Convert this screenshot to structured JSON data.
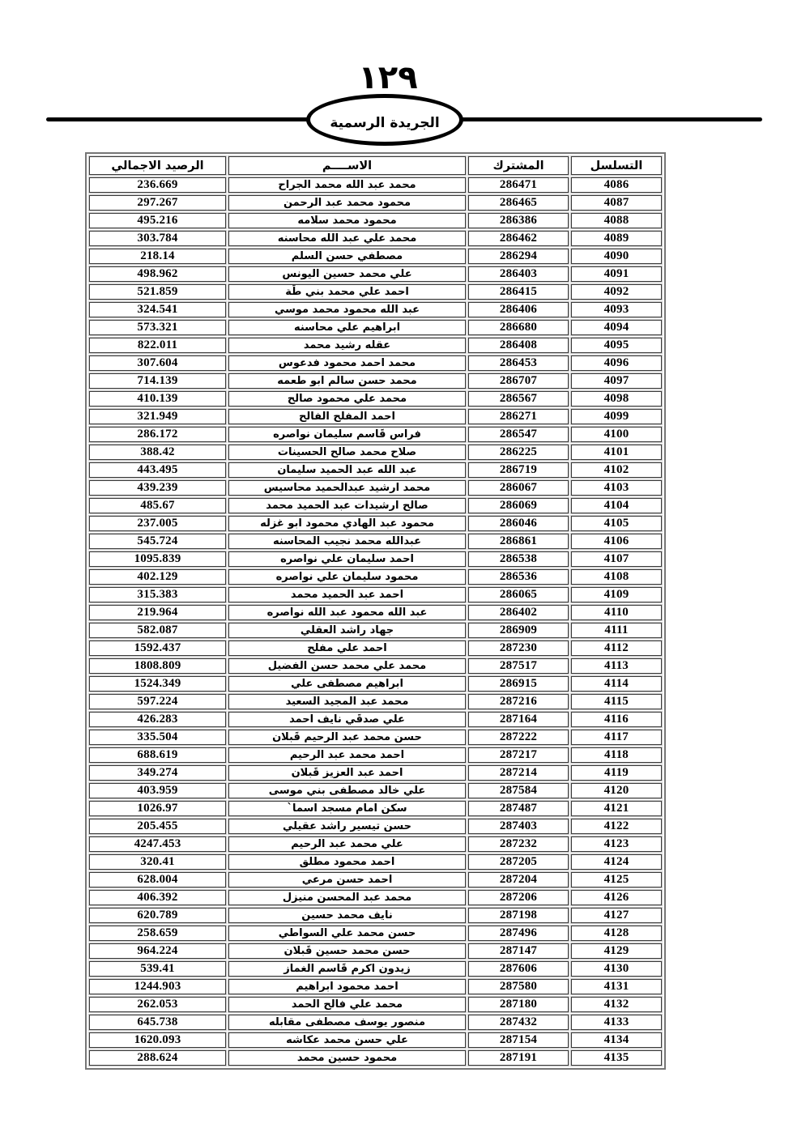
{
  "page": {
    "page_number_arabic": "١٢٩",
    "banner_title": "الجريدة الرسمية"
  },
  "colors": {
    "text": "#000000",
    "cell_border": "#3b3b3b",
    "outer_border": "#767676",
    "background": "#ffffff"
  },
  "table": {
    "headers": {
      "serial": "التسلسل",
      "subscriber": "المشترك",
      "name": "الاســــم",
      "balance": "الرصيد الاجمالي"
    },
    "rows": [
      {
        "serial": "4086",
        "subscriber": "286471",
        "name": "محمد عبد الله محمد الجراح",
        "balance": "236.669"
      },
      {
        "serial": "4087",
        "subscriber": "286465",
        "name": "محمود محمد عبد الرحمن",
        "balance": "297.267"
      },
      {
        "serial": "4088",
        "subscriber": "286386",
        "name": "محمود محمد سلامه",
        "balance": "495.216"
      },
      {
        "serial": "4089",
        "subscriber": "286462",
        "name": "محمد علي عبد الله محاسنه",
        "balance": "303.784"
      },
      {
        "serial": "4090",
        "subscriber": "286294",
        "name": "مصطفي حسن السلم",
        "balance": "218.14"
      },
      {
        "serial": "4091",
        "subscriber": "286403",
        "name": "علي محمد حسين اليونس",
        "balance": "498.962"
      },
      {
        "serial": "4092",
        "subscriber": "286415",
        "name": "احمد علي محمد بني طَة",
        "balance": "521.859"
      },
      {
        "serial": "4093",
        "subscriber": "286406",
        "name": "عبد الله محمود محمد موسي",
        "balance": "324.541"
      },
      {
        "serial": "4094",
        "subscriber": "286680",
        "name": "ابراهيم علي محاسنه",
        "balance": "573.321"
      },
      {
        "serial": "4095",
        "subscriber": "286408",
        "name": "عقله رشيد محمد",
        "balance": "822.011"
      },
      {
        "serial": "4096",
        "subscriber": "286453",
        "name": "محمد احمد محمود فدعوس",
        "balance": "307.604"
      },
      {
        "serial": "4097",
        "subscriber": "286707",
        "name": "محمد حسن سالم ابو طعمه",
        "balance": "714.139"
      },
      {
        "serial": "4098",
        "subscriber": "286567",
        "name": "محمد علي محمود صالح",
        "balance": "410.139"
      },
      {
        "serial": "4099",
        "subscriber": "286271",
        "name": "احمد المفلح الفالح",
        "balance": "321.949"
      },
      {
        "serial": "4100",
        "subscriber": "286547",
        "name": "فراس قَاسم سليمان نواصره",
        "balance": "286.172"
      },
      {
        "serial": "4101",
        "subscriber": "286225",
        "name": "صلاح محمد صالح الحسينات",
        "balance": "388.42"
      },
      {
        "serial": "4102",
        "subscriber": "286719",
        "name": "عبد الله عبد الحميد سليمان",
        "balance": "443.495"
      },
      {
        "serial": "4103",
        "subscriber": "286067",
        "name": "محمد ارشيد عبدالحميد محاسيس",
        "balance": "439.239"
      },
      {
        "serial": "4104",
        "subscriber": "286069",
        "name": "صالح ارشيدات عبد الحميد محمد",
        "balance": "485.67"
      },
      {
        "serial": "4105",
        "subscriber": "286046",
        "name": "محمود عبد الهادي محمود ابو غزله",
        "balance": "237.005"
      },
      {
        "serial": "4106",
        "subscriber": "286861",
        "name": "عبدالله محمد نجيب المحاسنه",
        "balance": "545.724"
      },
      {
        "serial": "4107",
        "subscriber": "286538",
        "name": "احمد سليمان علي نواصره",
        "balance": "1095.839"
      },
      {
        "serial": "4108",
        "subscriber": "286536",
        "name": "محمود سليمان علي نواصره",
        "balance": "402.129"
      },
      {
        "serial": "4109",
        "subscriber": "286065",
        "name": "احمد عبد الحميد محمد",
        "balance": "315.383"
      },
      {
        "serial": "4110",
        "subscriber": "286402",
        "name": "عبد الله محمود عبد الله نواصره",
        "balance": "219.964"
      },
      {
        "serial": "4111",
        "subscriber": "286909",
        "name": "جهاد راشد العقلي",
        "balance": "582.087"
      },
      {
        "serial": "4112",
        "subscriber": "287230",
        "name": "احمد علي مفلح",
        "balance": "1592.437"
      },
      {
        "serial": "4113",
        "subscriber": "287517",
        "name": "محمد علي محمد حسن الفضيل",
        "balance": "1808.809"
      },
      {
        "serial": "4114",
        "subscriber": "286915",
        "name": "ابراهيم مصطفى علي",
        "balance": "1524.349"
      },
      {
        "serial": "4115",
        "subscriber": "287216",
        "name": "محمد عبد المجيد السعيد",
        "balance": "597.224"
      },
      {
        "serial": "4116",
        "subscriber": "287164",
        "name": "علي صدقَي نايف احمد",
        "balance": "426.283"
      },
      {
        "serial": "4117",
        "subscriber": "287222",
        "name": "حسن محمد عبد الرحيم قَبلان",
        "balance": "335.504"
      },
      {
        "serial": "4118",
        "subscriber": "287217",
        "name": "احمد محمد عبد الرحيم",
        "balance": "688.619"
      },
      {
        "serial": "4119",
        "subscriber": "287214",
        "name": "احمد عبد العزيز قَبلان",
        "balance": "349.274"
      },
      {
        "serial": "4120",
        "subscriber": "287584",
        "name": "علي خالد مصطفى بني موسى",
        "balance": "403.959"
      },
      {
        "serial": "4121",
        "subscriber": "287487",
        "name": "سكن امام مسجد اسما`",
        "balance": "1026.97"
      },
      {
        "serial": "4122",
        "subscriber": "287403",
        "name": "حسن تيسير راشد عقيلي",
        "balance": "205.455"
      },
      {
        "serial": "4123",
        "subscriber": "287232",
        "name": "علي محمد عبد الرحيم",
        "balance": "4247.453"
      },
      {
        "serial": "4124",
        "subscriber": "287205",
        "name": "احمد محمود مطلق",
        "balance": "320.41"
      },
      {
        "serial": "4125",
        "subscriber": "287204",
        "name": "احمد حسن مرعي",
        "balance": "628.004"
      },
      {
        "serial": "4126",
        "subscriber": "287206",
        "name": "محمد عبد المحسن منيزل",
        "balance": "406.392"
      },
      {
        "serial": "4127",
        "subscriber": "287198",
        "name": "نايف محمد حسين",
        "balance": "620.789"
      },
      {
        "serial": "4128",
        "subscriber": "287496",
        "name": "حسن محمد علي السواطي",
        "balance": "258.659"
      },
      {
        "serial": "4129",
        "subscriber": "287147",
        "name": "حسن محمد حسين قَبلان",
        "balance": "964.224"
      },
      {
        "serial": "4130",
        "subscriber": "287606",
        "name": "زيدون اكرم قَاسم الغماز",
        "balance": "539.41"
      },
      {
        "serial": "4131",
        "subscriber": "287580",
        "name": "احمد محمود ابراهيم",
        "balance": "1244.903"
      },
      {
        "serial": "4132",
        "subscriber": "287180",
        "name": "محمد علي فالح الحمد",
        "balance": "262.053"
      },
      {
        "serial": "4133",
        "subscriber": "287432",
        "name": "منصور يوسف مصطفى مقابله",
        "balance": "645.738"
      },
      {
        "serial": "4134",
        "subscriber": "287154",
        "name": "علي حسن محمد عكاشه",
        "balance": "1620.093"
      },
      {
        "serial": "4135",
        "subscriber": "287191",
        "name": "محمود حسين محمد",
        "balance": "288.624"
      }
    ]
  }
}
